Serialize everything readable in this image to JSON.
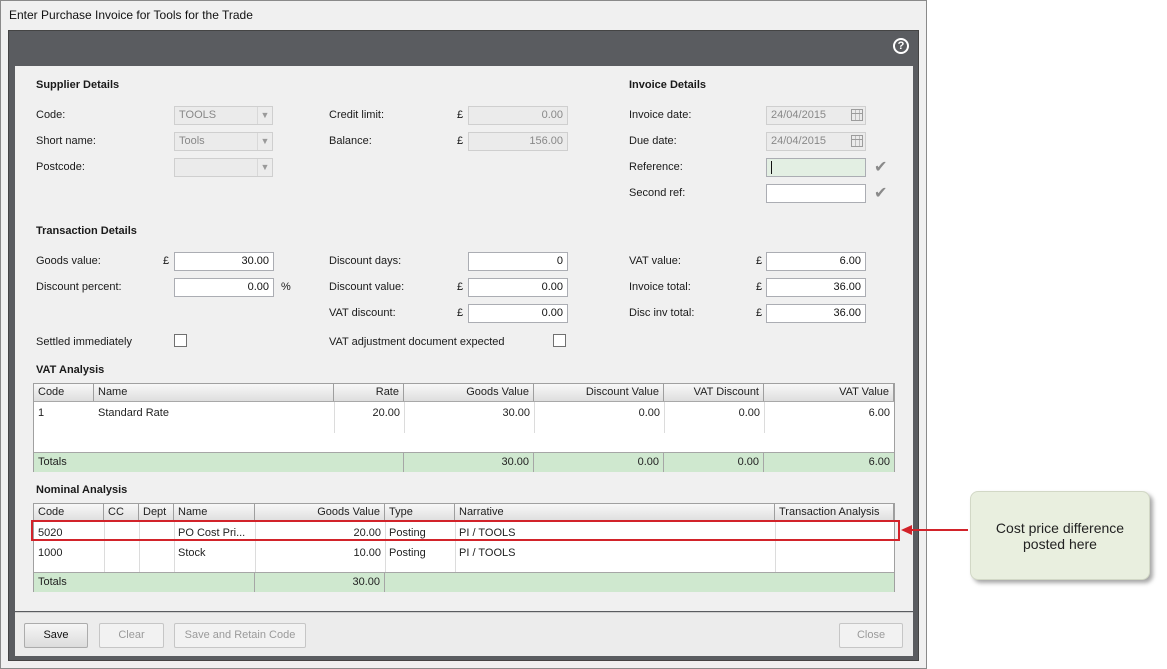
{
  "window": {
    "title": "Enter Purchase Invoice for Tools for the Trade",
    "help": "?"
  },
  "supplier": {
    "title": "Supplier Details",
    "code_label": "Code:",
    "code_value": "TOOLS",
    "short_label": "Short name:",
    "short_value": "Tools",
    "postcode_label": "Postcode:",
    "postcode_value": "",
    "credit_label": "Credit limit:",
    "credit_value": "0.00",
    "balance_label": "Balance:",
    "balance_value": "156.00",
    "currency": "£"
  },
  "invoice": {
    "title": "Invoice Details",
    "date_label": "Invoice date:",
    "date_value": "24/04/2015",
    "due_label": "Due date:",
    "due_value": "24/04/2015",
    "ref_label": "Reference:",
    "ref_value": "",
    "second_label": "Second ref:",
    "second_value": ""
  },
  "transaction": {
    "title": "Transaction Details",
    "goods_label": "Goods value:",
    "goods_value": "30.00",
    "discpct_label": "Discount percent:",
    "discpct_value": "0.00",
    "pct_symbol": "%",
    "discdays_label": "Discount days:",
    "discdays_value": "0",
    "discval_label": "Discount value:",
    "discval_value": "0.00",
    "vatdisc_label": "VAT discount:",
    "vatdisc_value": "0.00",
    "vatval_label": "VAT value:",
    "vatval_value": "6.00",
    "invtotal_label": "Invoice total:",
    "invtotal_value": "36.00",
    "discinv_label": "Disc inv total:",
    "discinv_value": "36.00",
    "settled_label": "Settled immediately",
    "vatadj_label": "VAT adjustment document expected"
  },
  "vat_analysis": {
    "title": "VAT Analysis",
    "headers": [
      "Code",
      "Name",
      "Rate",
      "Goods Value",
      "Discount Value",
      "VAT Discount",
      "VAT Value"
    ],
    "rows": [
      {
        "code": "1",
        "name": "Standard Rate",
        "rate": "20.00",
        "goods": "30.00",
        "discount": "0.00",
        "vat_discount": "0.00",
        "vat": "6.00"
      }
    ],
    "totals": {
      "label": "Totals",
      "goods": "30.00",
      "discount": "0.00",
      "vat_discount": "0.00",
      "vat": "6.00"
    }
  },
  "nominal_analysis": {
    "title": "Nominal Analysis",
    "headers": [
      "Code",
      "CC",
      "Dept",
      "Name",
      "Goods Value",
      "Type",
      "Narrative",
      "Transaction Analysis"
    ],
    "rows": [
      {
        "code": "5020",
        "cc": "",
        "dept": "",
        "name": "PO Cost Pri...",
        "goods": "20.00",
        "type": "Posting",
        "narrative": "PI / TOOLS",
        "analysis": ""
      },
      {
        "code": "1000",
        "cc": "",
        "dept": "",
        "name": "Stock",
        "goods": "10.00",
        "type": "Posting",
        "narrative": "PI / TOOLS",
        "analysis": ""
      }
    ],
    "totals": {
      "label": "Totals",
      "goods": "30.00"
    }
  },
  "buttons": {
    "save": "Save",
    "clear": "Clear",
    "save_retain": "Save and Retain Code",
    "close": "Close"
  },
  "callout": {
    "text": "Cost price difference posted here",
    "color": "#d2232a"
  }
}
